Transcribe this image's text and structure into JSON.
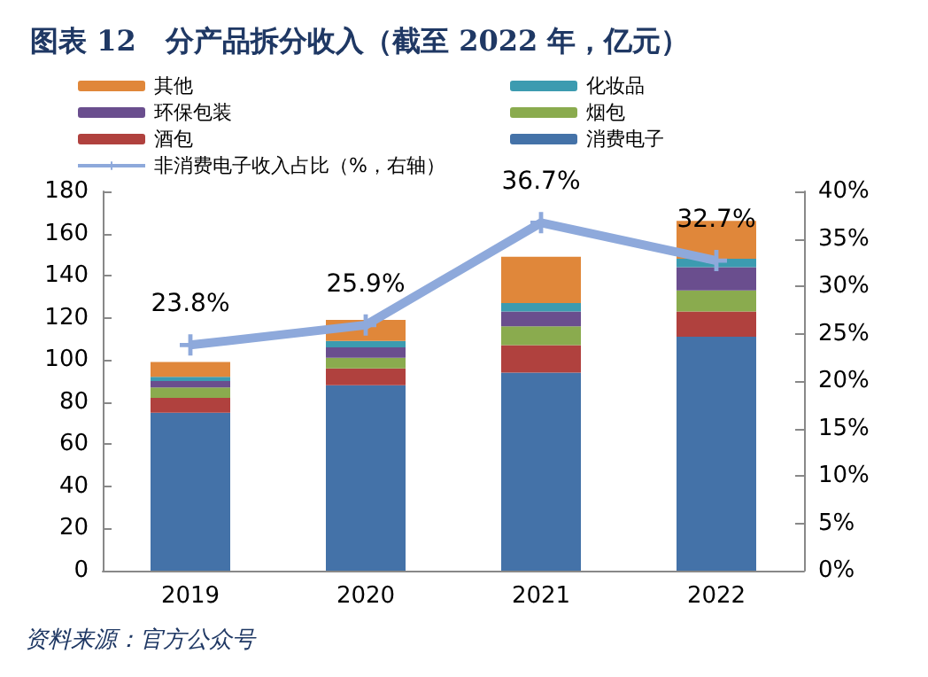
{
  "chart_data": {
    "type": "bar",
    "title": "图表 12   分产品拆分收入（截至 2022 年，亿元）",
    "categories": [
      "2019",
      "2020",
      "2021",
      "2022"
    ],
    "stacked": true,
    "series": [
      {
        "name": "消费电子",
        "color": "#4472a8",
        "values": [
          75,
          88,
          94,
          111
        ]
      },
      {
        "name": "酒包",
        "color": "#b0413e",
        "values": [
          7,
          8,
          13,
          12
        ]
      },
      {
        "name": "烟包",
        "color": "#8aab4e",
        "values": [
          5,
          5,
          9,
          10
        ]
      },
      {
        "name": "环保包装",
        "color": "#6a4e8e",
        "values": [
          3,
          5,
          7,
          11
        ]
      },
      {
        "name": "化妆品",
        "color": "#3c9bb0",
        "values": [
          2,
          3,
          4,
          4
        ]
      },
      {
        "name": "其他",
        "color": "#e0873a",
        "values": [
          7,
          10,
          22,
          18
        ]
      },
      {
        "name": "非消费电子收入占比（%，右轴）",
        "type": "line",
        "axis": "y2",
        "color": "#8ea9db",
        "marker": "cross",
        "values": [
          23.8,
          25.9,
          36.7,
          32.7
        ],
        "value_labels": [
          "23.8%",
          "25.9%",
          "36.7%",
          "32.7%"
        ]
      }
    ],
    "ylim": [
      0,
      180
    ],
    "yticks": [
      0,
      20,
      40,
      60,
      80,
      100,
      120,
      140,
      160,
      180
    ],
    "y2lim": [
      0,
      40
    ],
    "y2ticks": [
      {
        "value": 0,
        "label": "0%"
      },
      {
        "value": 5,
        "label": "5%"
      },
      {
        "value": 10,
        "label": "10%"
      },
      {
        "value": 15,
        "label": "15%"
      },
      {
        "value": 20,
        "label": "20%"
      },
      {
        "value": 25,
        "label": "25%"
      },
      {
        "value": 30,
        "label": "30%"
      },
      {
        "value": 35,
        "label": "35%"
      },
      {
        "value": 40,
        "label": "40%"
      }
    ],
    "grid": false,
    "legend": "top",
    "annotations": [
      "资料来源：官方公众号"
    ]
  }
}
